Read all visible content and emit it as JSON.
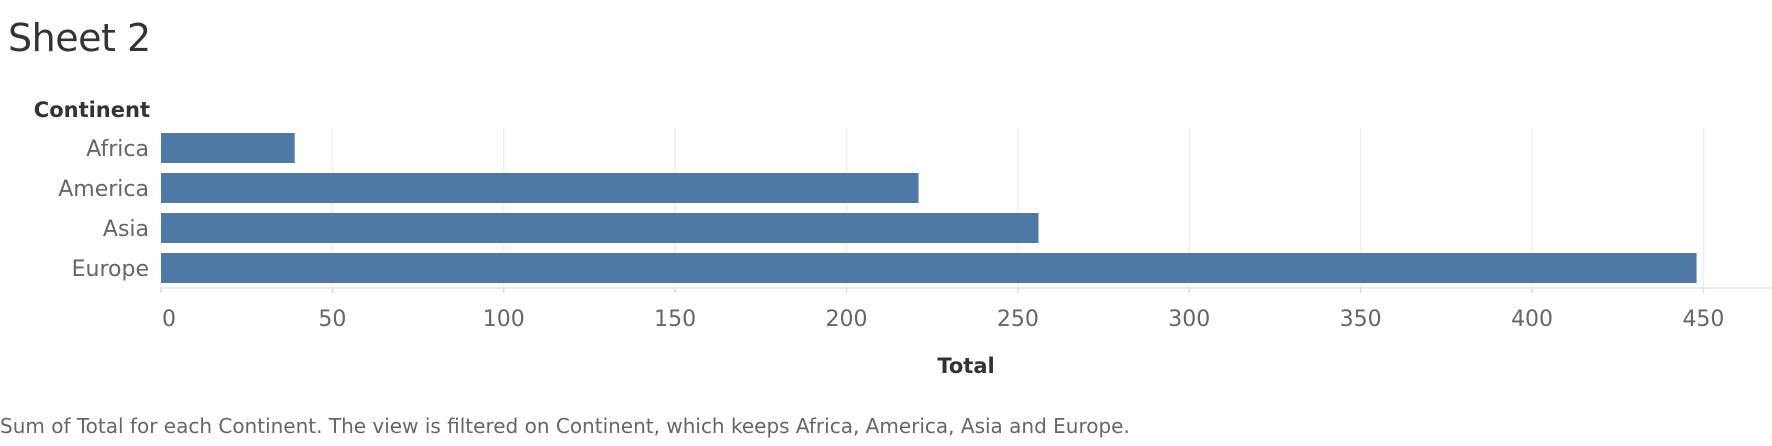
{
  "sheet": {
    "title": "Sheet 2",
    "caption": "Sum of Total for each Continent. The view is filtered on Continent, which keeps Africa, America, Asia and Europe."
  },
  "chart_data": {
    "type": "bar",
    "orientation": "horizontal",
    "categories": [
      "Africa",
      "America",
      "Asia",
      "Europe"
    ],
    "values": [
      39,
      221,
      256,
      448
    ],
    "ylabel": "Continent",
    "xlabel": "Total",
    "xlim": [
      0,
      470
    ],
    "xticks": [
      0,
      50,
      100,
      150,
      200,
      250,
      300,
      350,
      400,
      450
    ],
    "grid": true,
    "legend": "none",
    "bar_color": "#4e79a7"
  }
}
